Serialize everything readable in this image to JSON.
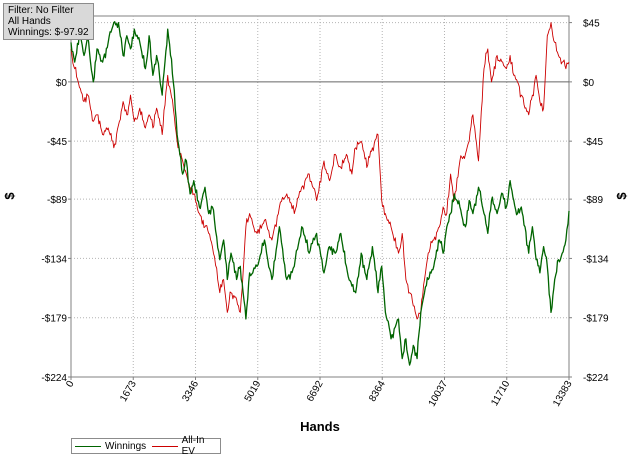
{
  "info": {
    "filter": "Filter: No Filter",
    "scope": "All Hands",
    "winnings": "Winnings: $-97.92"
  },
  "chart_data": {
    "type": "line",
    "xlabel": "Hands",
    "ylabel": "$",
    "xlim": [
      0,
      13383
    ],
    "ylim": [
      -224,
      50
    ],
    "x_ticks": [
      0,
      1673,
      3346,
      5019,
      6692,
      8364,
      10037,
      11710,
      13383
    ],
    "y_ticks": [
      45,
      0,
      -45,
      -89,
      -134,
      -179,
      -224
    ],
    "y_tick_labels": [
      "$45",
      "$0",
      "-$45",
      "-$89",
      "-$134",
      "-$179",
      "-$224"
    ],
    "grid": true,
    "legend": "bottom-left",
    "series": [
      {
        "name": "Winnings",
        "color": "#006400",
        "x": [
          0,
          100,
          250,
          350,
          450,
          600,
          700,
          850,
          1000,
          1150,
          1300,
          1400,
          1500,
          1600,
          1700,
          1850,
          2000,
          2100,
          2200,
          2300,
          2450,
          2600,
          2750,
          2850,
          3000,
          3100,
          3200,
          3300,
          3450,
          3600,
          3700,
          3800,
          4000,
          4100,
          4200,
          4300,
          4450,
          4550,
          4700,
          4800,
          5000,
          5200,
          5400,
          5600,
          5800,
          6000,
          6200,
          6400,
          6600,
          6800,
          6950,
          7100,
          7250,
          7400,
          7550,
          7650,
          7800,
          7950,
          8100,
          8250,
          8350,
          8450,
          8600,
          8800,
          8900,
          9000,
          9100,
          9200,
          9300,
          9400,
          9500,
          9600,
          9750,
          9900,
          10000,
          10100,
          10200,
          10300,
          10450,
          10600,
          10700,
          10800,
          10950,
          11100,
          11200,
          11300,
          11450,
          11600,
          11700,
          11800,
          11900,
          12000,
          12100,
          12200,
          12300,
          12400,
          12500,
          12600,
          12700,
          12800,
          12900,
          13000,
          13100,
          13200,
          13300,
          13383
        ],
        "y": [
          30,
          15,
          40,
          20,
          35,
          0,
          25,
          15,
          30,
          45,
          40,
          20,
          35,
          25,
          40,
          30,
          10,
          35,
          5,
          20,
          -10,
          40,
          0,
          -40,
          -70,
          -60,
          -85,
          -75,
          -95,
          -80,
          -100,
          -95,
          -135,
          -120,
          -150,
          -130,
          -150,
          -140,
          -180,
          -145,
          -140,
          -120,
          -150,
          -110,
          -150,
          -140,
          -110,
          -130,
          -115,
          -145,
          -125,
          -130,
          -115,
          -140,
          -155,
          -160,
          -130,
          -150,
          -125,
          -160,
          -140,
          -175,
          -195,
          -180,
          -210,
          -195,
          -215,
          -200,
          -210,
          -175,
          -160,
          -150,
          -140,
          -120,
          -130,
          -110,
          -100,
          -85,
          -95,
          -110,
          -90,
          -100,
          -80,
          -100,
          -115,
          -90,
          -100,
          -85,
          -95,
          -75,
          -90,
          -100,
          -95,
          -110,
          -130,
          -110,
          -135,
          -145,
          -125,
          -140,
          -175,
          -150,
          -135,
          -130,
          -120,
          -97.92
        ]
      },
      {
        "name": "All-In EV",
        "color": "#cc0000",
        "x": [
          0,
          100,
          250,
          350,
          450,
          600,
          700,
          850,
          1000,
          1150,
          1300,
          1400,
          1500,
          1600,
          1700,
          1850,
          2000,
          2100,
          2200,
          2300,
          2450,
          2600,
          2750,
          2850,
          3000,
          3100,
          3200,
          3300,
          3450,
          3600,
          3700,
          3800,
          4000,
          4100,
          4200,
          4300,
          4450,
          4550,
          4700,
          4800,
          5000,
          5200,
          5400,
          5600,
          5800,
          6000,
          6200,
          6400,
          6600,
          6800,
          6950,
          7100,
          7250,
          7400,
          7550,
          7650,
          7800,
          7950,
          8100,
          8250,
          8350,
          8450,
          8600,
          8800,
          8900,
          9000,
          9100,
          9200,
          9300,
          9400,
          9500,
          9600,
          9750,
          9900,
          10000,
          10100,
          10200,
          10300,
          10450,
          10600,
          10700,
          10800,
          10950,
          11100,
          11200,
          11300,
          11450,
          11600,
          11700,
          11800,
          11900,
          12000,
          12100,
          12200,
          12300,
          12400,
          12500,
          12600,
          12700,
          12800,
          12900,
          13000,
          13100,
          13200,
          13300,
          13383
        ],
        "y": [
          25,
          10,
          -5,
          -15,
          -10,
          -30,
          -25,
          -40,
          -35,
          -50,
          -30,
          -15,
          -25,
          -10,
          -30,
          -20,
          -35,
          -25,
          -35,
          -20,
          -40,
          5,
          -20,
          -45,
          -60,
          -70,
          -80,
          -85,
          -100,
          -110,
          -115,
          -125,
          -160,
          -150,
          -175,
          -160,
          -165,
          -175,
          -110,
          -100,
          -115,
          -105,
          -120,
          -95,
          -85,
          -100,
          -80,
          -70,
          -90,
          -60,
          -75,
          -55,
          -65,
          -55,
          -70,
          -50,
          -45,
          -65,
          -50,
          -40,
          -90,
          -100,
          -110,
          -130,
          -115,
          -150,
          -160,
          -170,
          -180,
          -175,
          -150,
          -130,
          -120,
          -110,
          -95,
          -100,
          -70,
          -90,
          -60,
          -55,
          -45,
          -25,
          -60,
          10,
          25,
          0,
          20,
          15,
          10,
          20,
          5,
          0,
          -10,
          -20,
          -25,
          -10,
          5,
          -15,
          -20,
          35,
          45,
          30,
          20,
          15,
          10,
          15
        ]
      }
    ]
  }
}
